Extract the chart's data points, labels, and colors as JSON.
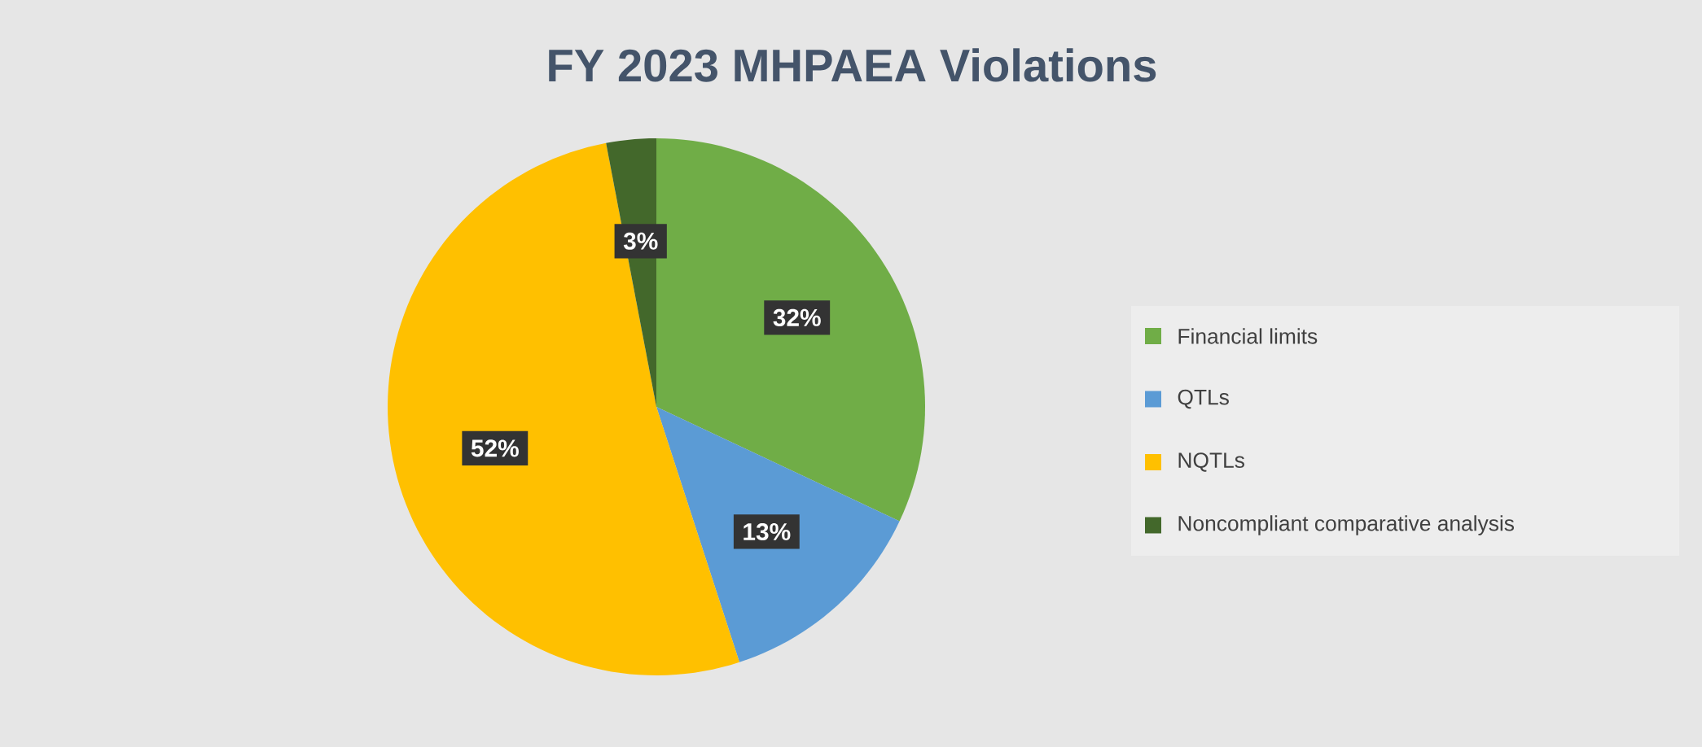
{
  "chart_data": {
    "type": "pie",
    "title": "FY 2023 MHPAEA Violations",
    "categories": [
      "Financial limits",
      "QTLs",
      "NQTLs",
      "Noncompliant comparative analysis"
    ],
    "values": [
      32,
      13,
      52,
      3
    ],
    "value_labels": [
      "32%",
      "13%",
      "52%",
      "3%"
    ],
    "colors": [
      "#70ad47",
      "#5b9bd5",
      "#ffc000",
      "#43682b"
    ],
    "legend": "right"
  }
}
